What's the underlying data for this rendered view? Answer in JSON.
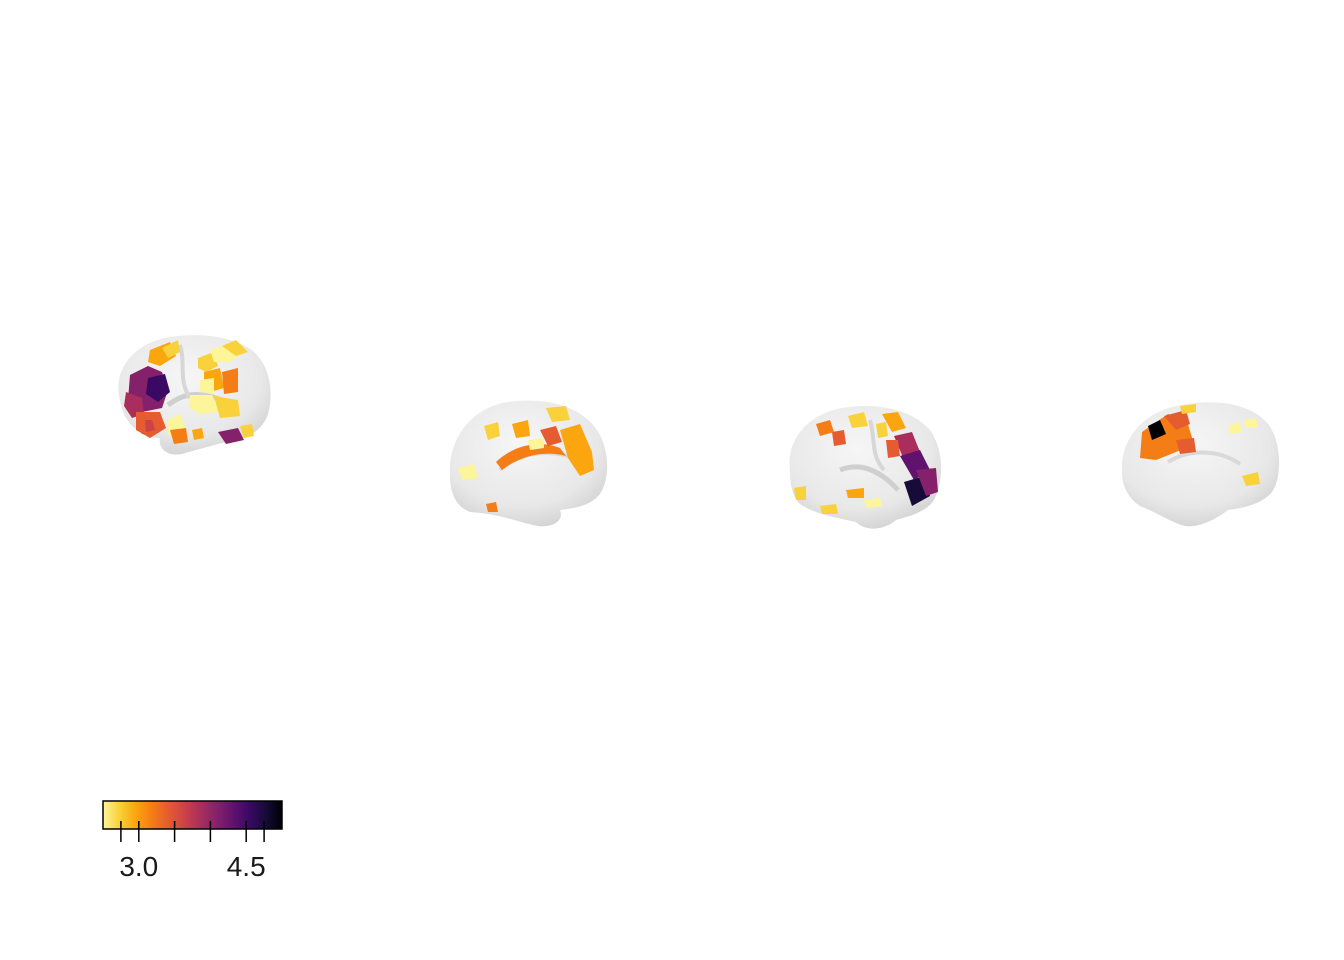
{
  "figure": {
    "views": [
      {
        "name": "left-lateral"
      },
      {
        "name": "left-medial"
      },
      {
        "name": "right-lateral"
      },
      {
        "name": "right-medial"
      }
    ]
  },
  "colorbar": {
    "colormap": "inferno-reversed",
    "stops": [
      "#fcf599",
      "#f9d13a",
      "#fba50f",
      "#f57d15",
      "#e55c30",
      "#cc4248",
      "#a92e5e",
      "#85216b",
      "#5f136e",
      "#390963",
      "#160b39",
      "#000004"
    ],
    "min": 2.5,
    "max": 5.0,
    "ticks": [
      2.75,
      3.0,
      3.5,
      4.0,
      4.5,
      4.75
    ],
    "tick_labels": [
      {
        "value": 3.0,
        "text": "3.0"
      },
      {
        "value": 4.5,
        "text": "4.5"
      }
    ]
  },
  "colors": {
    "surface": "#e9e9e9",
    "surface_shadow": "#d2d2d2",
    "background": "#ffffff"
  }
}
